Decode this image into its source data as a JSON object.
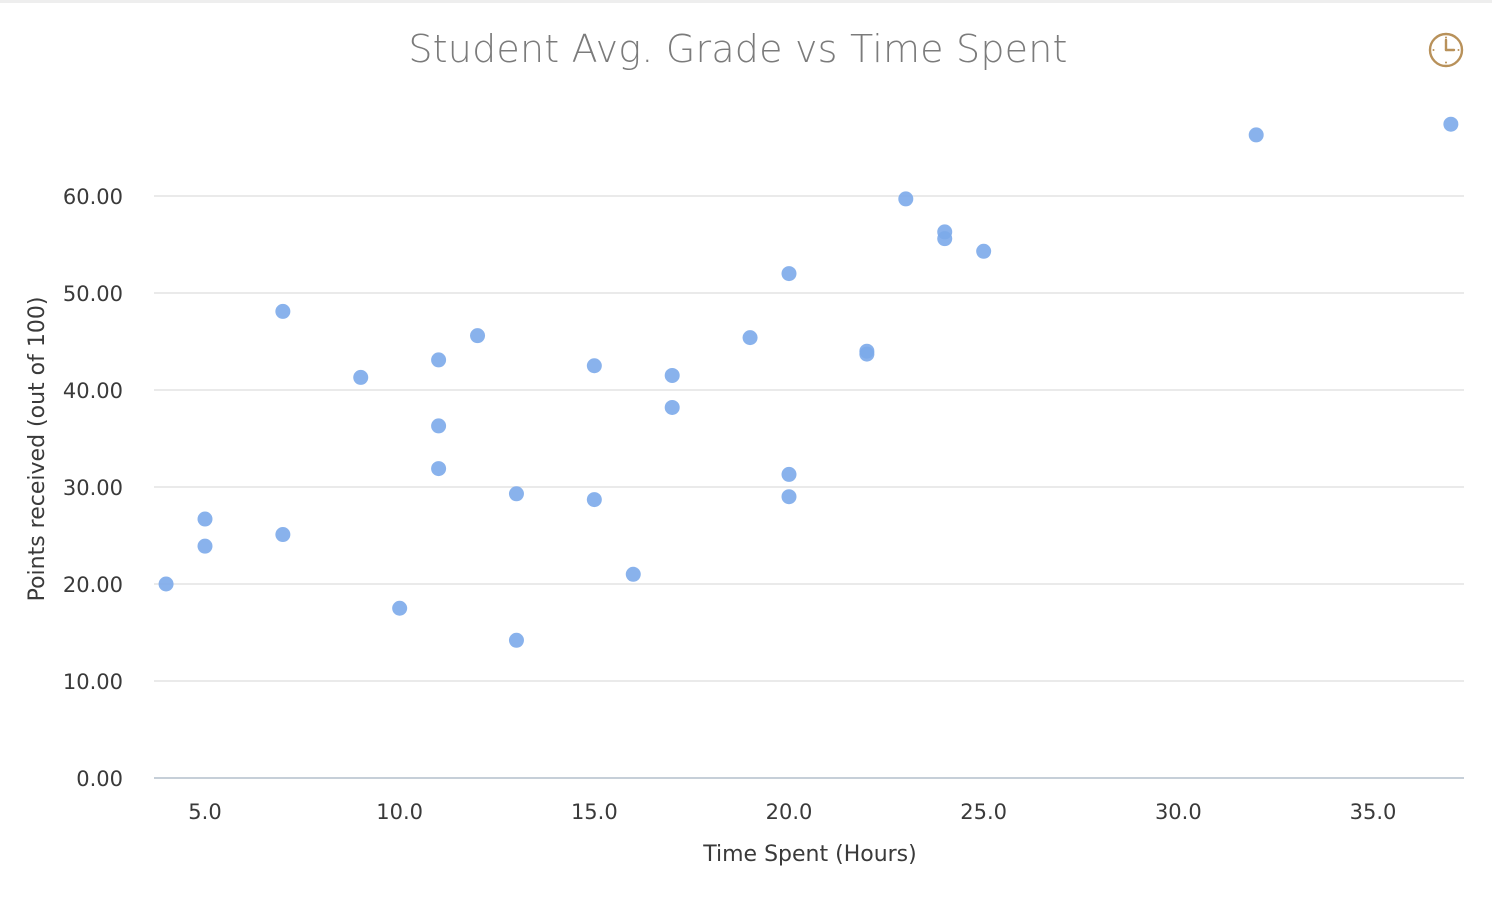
{
  "header": {
    "clock_icon": "clock-icon",
    "clock_color": "#b8915a"
  },
  "chart_data": {
    "type": "scatter",
    "title": "Student Avg. Grade vs Time Spent",
    "xlabel": "Time Spent (Hours)",
    "ylabel": "Points received (out of 100)",
    "xlim": [
      3.7,
      37.4
    ],
    "ylim": [
      0,
      65
    ],
    "x_ticks": [
      5,
      10,
      15,
      20,
      25,
      30,
      35
    ],
    "x_tick_labels": [
      "5.0",
      "10.0",
      "15.0",
      "20.0",
      "25.0",
      "30.0",
      "35.0"
    ],
    "y_ticks": [
      0,
      10,
      20,
      30,
      40,
      50,
      60
    ],
    "y_tick_labels": [
      "0.00",
      "10.00",
      "20.00",
      "30.00",
      "40.00",
      "50.00",
      "60.00"
    ],
    "grid": true,
    "legend": false,
    "point_color": "#7caaea",
    "points": [
      {
        "x": 4,
        "y": 20.0
      },
      {
        "x": 5,
        "y": 26.7
      },
      {
        "x": 5,
        "y": 23.9
      },
      {
        "x": 7,
        "y": 48.1
      },
      {
        "x": 7,
        "y": 25.1
      },
      {
        "x": 9,
        "y": 41.3
      },
      {
        "x": 10,
        "y": 17.5
      },
      {
        "x": 11,
        "y": 43.1
      },
      {
        "x": 11,
        "y": 36.3
      },
      {
        "x": 11,
        "y": 31.9
      },
      {
        "x": 12,
        "y": 45.6
      },
      {
        "x": 13,
        "y": 29.3
      },
      {
        "x": 13,
        "y": 14.2
      },
      {
        "x": 15,
        "y": 42.5
      },
      {
        "x": 15,
        "y": 28.7
      },
      {
        "x": 16,
        "y": 21.0
      },
      {
        "x": 17,
        "y": 41.5
      },
      {
        "x": 17,
        "y": 38.2
      },
      {
        "x": 19,
        "y": 45.4
      },
      {
        "x": 20,
        "y": 52.0
      },
      {
        "x": 20,
        "y": 31.3
      },
      {
        "x": 20,
        "y": 29.0
      },
      {
        "x": 22,
        "y": 44.0
      },
      {
        "x": 22,
        "y": 43.7
      },
      {
        "x": 23,
        "y": 59.7
      },
      {
        "x": 24,
        "y": 56.3
      },
      {
        "x": 24,
        "y": 55.6
      },
      {
        "x": 25,
        "y": 54.3
      },
      {
        "x": 32,
        "y": 66.3
      },
      {
        "x": 37,
        "y": 67.4
      }
    ]
  }
}
